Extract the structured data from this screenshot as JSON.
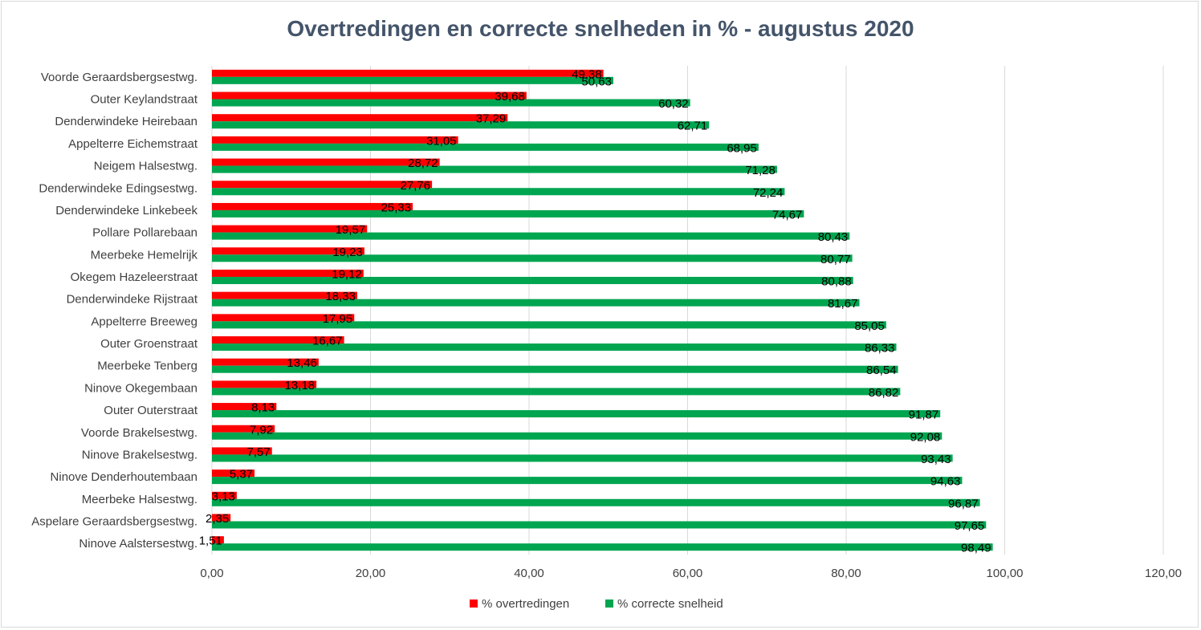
{
  "chart_data": {
    "type": "bar",
    "orientation": "horizontal",
    "title": "Overtredingen en correcte snelheden in % - augustus 2020",
    "xlabel": "",
    "ylabel": "",
    "xlim": [
      0,
      120
    ],
    "xticks": [
      "0,00",
      "20,00",
      "40,00",
      "60,00",
      "80,00",
      "100,00",
      "120,00"
    ],
    "grid": true,
    "legend_position": "bottom",
    "categories": [
      "Voorde Geraardsbergsestwg.",
      "Outer Keylandstraat",
      "Denderwindeke Heirebaan",
      "Appelterre Eichemstraat",
      "Neigem Halsestwg.",
      "Denderwindeke Edingsestwg.",
      "Denderwindeke Linkebeek",
      "Pollare Pollarebaan",
      "Meerbeke Hemelrijk",
      "Okegem Hazeleerstraat",
      "Denderwindeke Rijstraat",
      "Appelterre Breeweg",
      "Outer Groenstraat",
      "Meerbeke Tenberg",
      "Ninove Okegembaan",
      "Outer Outerstraat",
      "Voorde Brakelsestwg.",
      "Ninove Brakelsestwg.",
      "Ninove Denderhoutembaan",
      "Meerbeke Halsestwg.",
      "Aspelare Geraardsbergsestwg.",
      "Ninove Aalstersestwg."
    ],
    "series": [
      {
        "name": "% overtredingen",
        "color": "#ff0000",
        "values": [
          49.38,
          39.68,
          37.29,
          31.05,
          28.72,
          27.76,
          25.33,
          19.57,
          19.23,
          19.12,
          18.33,
          17.95,
          16.67,
          13.46,
          13.18,
          8.13,
          7.92,
          7.57,
          5.37,
          3.13,
          2.35,
          1.51
        ],
        "labels": [
          "49,38",
          "39,68",
          "37,29",
          "31,05",
          "28,72",
          "27,76",
          "25,33",
          "19,57",
          "19,23",
          "19,12",
          "18,33",
          "17,95",
          "16,67",
          "13,46",
          "13,18",
          "8,13",
          "7,92",
          "7,57",
          "5,37",
          "3,13",
          "2,35",
          "1,51"
        ]
      },
      {
        "name": "% correcte snelheid",
        "color": "#00a550",
        "values": [
          50.63,
          60.32,
          62.71,
          68.95,
          71.28,
          72.24,
          74.67,
          80.43,
          80.77,
          80.88,
          81.67,
          85.05,
          86.33,
          86.54,
          86.82,
          91.87,
          92.08,
          93.43,
          94.63,
          96.87,
          97.65,
          98.49
        ],
        "labels": [
          "50,63",
          "60,32",
          "62,71",
          "68,95",
          "71,28",
          "72,24",
          "74,67",
          "80,43",
          "80,77",
          "80,88",
          "81,67",
          "85,05",
          "86,33",
          "86,54",
          "86,82",
          "91,87",
          "92,08",
          "93,43",
          "94,63",
          "96,87",
          "97,65",
          "98,49"
        ]
      }
    ]
  }
}
